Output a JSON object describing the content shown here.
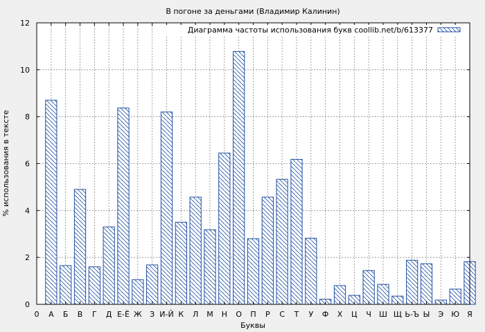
{
  "chart_data": {
    "type": "bar",
    "title": "В погоне за деньгами (Владимир Калинин)",
    "xlabel": "Буквы",
    "ylabel": "% использования в тексте",
    "legend": "Диаграмма частоты использования букв coollib.net/b/613377",
    "legend_position": "top-right",
    "grid": true,
    "ylim": [
      0,
      12
    ],
    "yticks": [
      0,
      2,
      4,
      6,
      8,
      10,
      12
    ],
    "xtick_labels": [
      "0",
      "А",
      "Б",
      "В",
      "Г",
      "Д",
      "Е-Ё",
      "Ж",
      "З",
      "И-Й",
      "К",
      "Л",
      "М",
      "Н",
      "О",
      "П",
      "Р",
      "С",
      "Т",
      "У",
      "Ф",
      "Х",
      "Ц",
      "Ч",
      "Ш",
      "Щ",
      "Ь-Ъ",
      "Ы",
      "Э",
      "Ю",
      "Я"
    ],
    "categories": [
      "А",
      "Б",
      "В",
      "Г",
      "Д",
      "Е-Ё",
      "Ж",
      "З",
      "И-Й",
      "К",
      "Л",
      "М",
      "Н",
      "О",
      "П",
      "Р",
      "С",
      "Т",
      "У",
      "Ф",
      "Х",
      "Ц",
      "Ч",
      "Ш",
      "Щ",
      "Ь-Ъ",
      "Ы",
      "Э",
      "Ю",
      "Я"
    ],
    "values": [
      8.7,
      1.65,
      4.9,
      1.6,
      3.3,
      8.37,
      1.05,
      1.68,
      8.2,
      3.5,
      4.57,
      3.18,
      6.45,
      10.78,
      2.8,
      4.57,
      5.33,
      6.18,
      2.82,
      0.22,
      0.8,
      0.38,
      1.44,
      0.85,
      0.35,
      1.88,
      1.73,
      0.18,
      0.65,
      1.82
    ],
    "bar_color": "#1f4fa0",
    "background": "#ffffff"
  }
}
